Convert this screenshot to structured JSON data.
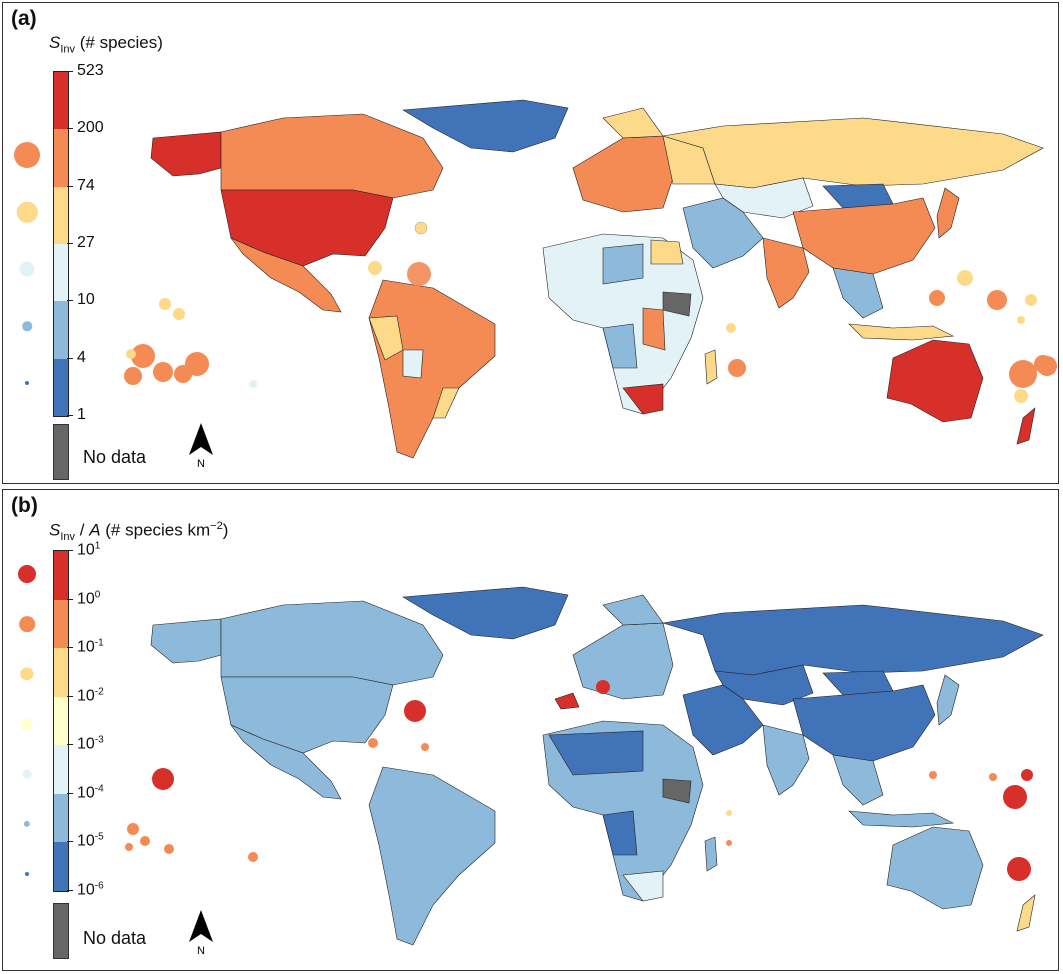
{
  "panel_a": {
    "label": "(a)",
    "title_var": "S",
    "title_sub": "Inv",
    "title_rest": " (# species)",
    "ticks": [
      "523",
      "200",
      "74",
      "27",
      "10",
      "4",
      "1"
    ],
    "bin_colors": [
      "#d7302a",
      "#f48a54",
      "#fdd98a",
      "#e2f2f7",
      "#8db9da",
      "#4173b8"
    ],
    "legend_dot_colors": [
      "#f48a54",
      "#fdd98a",
      "#e2f2f7",
      "#8db9da",
      "#4173b8"
    ],
    "nodata_label": "No data",
    "north_label": "N"
  },
  "panel_b": {
    "label": "(b)",
    "title_var": "S",
    "title_sub": "Inv",
    "title_mid": " / ",
    "title_var2": "A",
    "title_rest": " (# species km",
    "title_exp": "−2",
    "title_close": ")",
    "ticks": [
      {
        "base": "10",
        "exp": "1"
      },
      {
        "base": "10",
        "exp": "0"
      },
      {
        "base": "10",
        "exp": "-1"
      },
      {
        "base": "10",
        "exp": "-2"
      },
      {
        "base": "10",
        "exp": "-3"
      },
      {
        "base": "10",
        "exp": "-4"
      },
      {
        "base": "10",
        "exp": "-5"
      },
      {
        "base": "10",
        "exp": "-6"
      }
    ],
    "bin_colors": [
      "#d7302a",
      "#f48a54",
      "#fdd98a",
      "#ffffcc",
      "#e2f2f7",
      "#8db9da",
      "#4173b8"
    ],
    "legend_dot_colors": [
      "#d7302a",
      "#f48a54",
      "#fdd98a",
      "#ffffcc",
      "#e2f2f7",
      "#8db9da",
      "#4173b8"
    ],
    "nodata_label": "No data",
    "north_label": "N"
  },
  "colors": {
    "ocean": "#ffffff",
    "border": "#222222",
    "nodata": "#666666"
  }
}
